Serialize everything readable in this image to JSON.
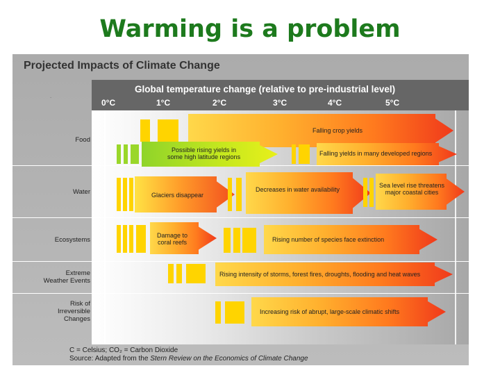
{
  "slide_title": "Warming is a problem",
  "chart": {
    "heading": "Projected Impacts of Climate Change",
    "tiny_mark": ".",
    "axis_title": "Global temperature change (relative to pre-industrial level)",
    "ticks": [
      "0°C",
      "1°C",
      "2°C",
      "3°C",
      "4°C",
      "5°C"
    ],
    "rows": [
      {
        "label_lines": [
          "Food"
        ]
      },
      {
        "label_lines": [
          "Water"
        ]
      },
      {
        "label_lines": [
          "Ecosystems"
        ]
      },
      {
        "label_lines": [
          "Extreme",
          "Weather Events"
        ]
      },
      {
        "label_lines": [
          "Risk of",
          "Irreversible",
          "Changes"
        ]
      }
    ],
    "impacts": [
      {
        "lines": [
          "Falling crop yields"
        ]
      },
      {
        "lines": [
          "Possible rising yields in",
          "some high latitude regions"
        ]
      },
      {
        "lines": [
          "Falling yields in many developed regions"
        ]
      },
      {
        "lines": [
          "Glaciers disappear"
        ]
      },
      {
        "lines": [
          "Decreases in water availability"
        ]
      },
      {
        "lines": [
          "Sea level rise threatens",
          "major coastal cities"
        ]
      },
      {
        "lines": [
          "Damage to",
          "coral reefs"
        ]
      },
      {
        "lines": [
          "Rising number of species face extinction"
        ]
      },
      {
        "lines": [
          "Rising intensity of storms, forest fires, droughts, flooding  and heat waves"
        ]
      },
      {
        "lines": [
          "Increasing risk of  abrupt, large-scale climatic shifts"
        ]
      }
    ],
    "footnote_1": "C = Celsius; CO₂ = Carbon Dioxide",
    "footnote_2_prefix": "Source: Adapted from the ",
    "footnote_2_italic": "Stern Review on the Economics of Climate Change"
  }
}
